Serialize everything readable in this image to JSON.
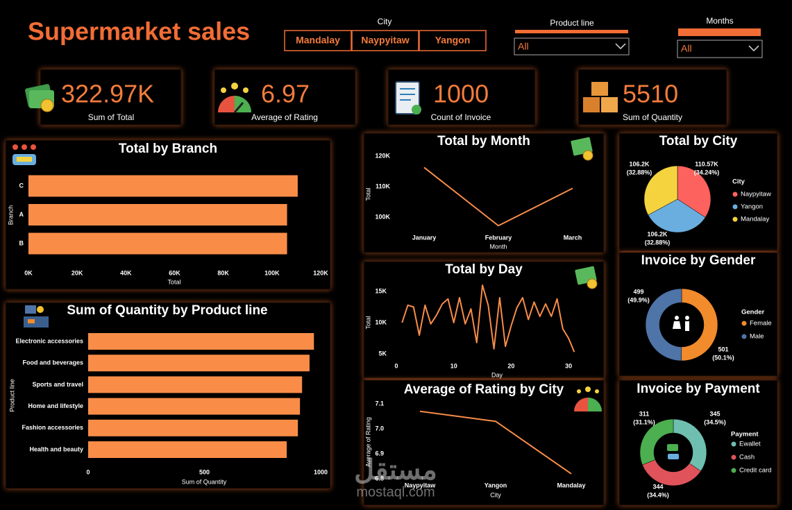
{
  "header": {
    "title": "Supermarket sales"
  },
  "slicers": {
    "city": {
      "label": "City",
      "options": [
        "Mandalay",
        "Naypyitaw",
        "Yangon"
      ]
    },
    "product_line": {
      "label": "Product line",
      "value": "All"
    },
    "months": {
      "label": "Months",
      "value": "All"
    }
  },
  "kpis": [
    {
      "value": "322.97K",
      "label": "Sum of Total"
    },
    {
      "value": "6.97",
      "label": "Average of Rating"
    },
    {
      "value": "1000",
      "label": "Count of Invoice"
    },
    {
      "value": "5510",
      "label": "Sum of Quantity"
    }
  ],
  "watermark": {
    "arabic": "مستقل",
    "latin": "mostaql.com"
  },
  "chart_data": [
    {
      "type": "hbar",
      "title": "Total by Branch",
      "categories": [
        "C",
        "A",
        "B"
      ],
      "values": [
        110570,
        106200,
        106200
      ],
      "color": "#f98d48",
      "xlim": [
        0,
        120000
      ],
      "xticks": [
        {
          "value": 0,
          "label": "0K"
        },
        {
          "value": 20000,
          "label": "20K"
        },
        {
          "value": 40000,
          "label": "40K"
        },
        {
          "value": 60000,
          "label": "60K"
        },
        {
          "value": 80000,
          "label": "80K"
        },
        {
          "value": 100000,
          "label": "100K"
        },
        {
          "value": 120000,
          "label": "120K"
        }
      ],
      "xlabel": "Total",
      "ylabel": "Branch"
    },
    {
      "type": "line",
      "title": "Total by Month",
      "categories": [
        "January",
        "February",
        "March"
      ],
      "values": [
        116290,
        97220,
        109460
      ],
      "color": "#f98d48",
      "ylim": [
        96000,
        121000
      ],
      "yticks": [
        {
          "value": 100000,
          "label": "100K"
        },
        {
          "value": 110000,
          "label": "110K"
        },
        {
          "value": 120000,
          "label": "120K"
        }
      ],
      "xlabel": "Month",
      "ylabel": "Total"
    },
    {
      "type": "line",
      "title": "Total by Day",
      "x": [
        1,
        2,
        3,
        4,
        5,
        6,
        7,
        8,
        9,
        10,
        11,
        12,
        13,
        14,
        15,
        16,
        17,
        18,
        19,
        20,
        21,
        22,
        23,
        24,
        25,
        26,
        27,
        28,
        29,
        30,
        31
      ],
      "values": [
        10000,
        12800,
        12500,
        8000,
        12800,
        9800,
        11200,
        13000,
        13800,
        10000,
        14000,
        9800,
        12200,
        6800,
        16000,
        12800,
        5800,
        14000,
        6200,
        9500,
        12400,
        14000,
        10500,
        13300,
        11000,
        13000,
        11000,
        13800,
        9000,
        7500,
        5300
      ],
      "color": "#f98d48",
      "xlim": [
        0,
        31.5
      ],
      "xticks": [
        0,
        10,
        20,
        30
      ],
      "ylim": [
        4000,
        16500
      ],
      "yticks": [
        {
          "value": 5000,
          "label": "5K"
        },
        {
          "value": 10000,
          "label": "10K"
        },
        {
          "value": 15000,
          "label": "15K"
        }
      ],
      "xlabel": "Day",
      "ylabel": "Total"
    },
    {
      "type": "line",
      "title": "Average of Rating by City",
      "categories": [
        "Naypyitaw",
        "Yangon",
        "Mandalay"
      ],
      "values": [
        7.07,
        7.03,
        6.82
      ],
      "color": "#f98d48",
      "ylim": [
        6.8,
        7.12
      ],
      "yticks": [
        6.8,
        6.9,
        {
          "value": 7,
          "label": "7.0"
        },
        7.1
      ],
      "xlabel": "City",
      "ylabel": "Average of Rating"
    },
    {
      "type": "pie",
      "title": "Total by City",
      "legend_title": "City",
      "categories": [
        "Naypyitaw",
        "Yangon",
        "Mandalay"
      ],
      "values": [
        110570,
        106200,
        106200
      ],
      "value_labels": [
        "110.57K",
        "106.2K",
        "106.2K"
      ],
      "percent_labels": [
        "(34.24%)",
        "(32.88%)",
        "(32.88%)"
      ],
      "colors": [
        "#fd625e",
        "#6aaee0",
        "#f5d33f"
      ]
    },
    {
      "type": "pie",
      "title": "Invoice by Gender",
      "legend_title": "Gender",
      "categories": [
        "Female",
        "Male"
      ],
      "values": [
        501,
        499
      ],
      "percent_labels": [
        "(50.1%)",
        "(49.9%)"
      ],
      "colors": [
        "#f28b2c",
        "#4e74a8"
      ]
    },
    {
      "type": "pie",
      "title": "Invoice by Payment",
      "legend_title": "Payment",
      "categories": [
        "Ewallet",
        "Cash",
        "Credit card"
      ],
      "values": [
        345,
        344,
        311
      ],
      "percent_labels": [
        "(34.5%)",
        "(34.4%)",
        "(31.1%)"
      ],
      "colors": [
        "#6fbfb0",
        "#e0535a",
        "#4caf50"
      ]
    },
    {
      "type": "hbar",
      "title": "Sum of Quantity by Product line",
      "categories": [
        "Electronic accessories",
        "Food and beverages",
        "Sports and travel",
        "Home and lifestyle",
        "Fashion accessories",
        "Health and beauty"
      ],
      "values": [
        971,
        952,
        920,
        911,
        902,
        854
      ],
      "color": "#f98d48",
      "xlim": [
        0,
        1000
      ],
      "xticks": [
        0,
        500,
        1000
      ],
      "xlabel": "Sum of Quantity",
      "ylabel": "Product line"
    }
  ]
}
